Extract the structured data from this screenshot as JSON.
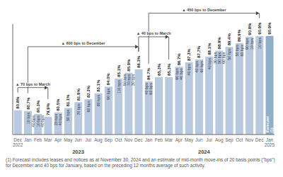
{
  "chart_data": {
    "type": "bar",
    "categories": [
      "Dec\n2022",
      "Jan",
      "Feb",
      "Mar",
      "Apr",
      "May",
      "Jun",
      "Jul",
      "Aug",
      "Sep",
      "Oct",
      "Nov",
      "Dec",
      "Jan",
      "Feb",
      "Mar",
      "Apr",
      "May",
      "Jun",
      "Jul",
      "Aug",
      "Sep",
      "Oct",
      "Nov",
      "Dec",
      "Jan\n2025"
    ],
    "values": [
      80.8,
      80.7,
      80.3,
      79.9,
      80.5,
      81.1,
      81.9,
      82.3,
      83.1,
      84.0,
      85.1,
      85.9,
      86.35,
      84.7,
      85.3,
      85.3,
      86.7,
      87.3,
      87.7,
      88.1,
      88.9,
      89.4,
      89.9,
      90.8,
      90.9,
      90.9
    ],
    "value_labels": [
      "80.8%",
      "80.7%",
      "80.3%",
      "79.9%",
      "80.5%",
      "81.1%",
      "81.9%",
      "82.3%",
      "83.1%",
      "84.0%",
      "85.1%",
      "85.9%",
      "86.3%",
      "84.7%",
      "85.3%",
      "85.3%",
      "86.7%",
      "87.3%",
      "87.7%",
      "88.1%",
      "88.9%",
      "89.4%",
      "89.9%",
      "90.8%",
      "90.9%",
      "90.9%"
    ],
    "data_labels": true,
    "colors": [
      "#b8c9e0",
      "#b8c9e0",
      "#b8c9e0",
      "#b8c9e0",
      "#b8c9e0",
      "#b8c9e0",
      "#b8c9e0",
      "#b8c9e0",
      "#b8c9e0",
      "#b8c9e0",
      "#b8c9e0",
      "#b8c9e0",
      "#b8c9e0",
      "#b8c9e0",
      "#b8c9e0",
      "#b8c9e0",
      "#b8c9e0",
      "#b8c9e0",
      "#b8c9e0",
      "#b8c9e0",
      "#b8c9e0",
      "#b8c9e0",
      "#b8c9e0",
      "#b8c9e0",
      "#b8c9e0",
      "#8faec8"
    ],
    "ylim": [
      77.5,
      92.5
    ],
    "tick_labels": "x",
    "grid": false,
    "annotations": [
      {
        "text": "10 bps",
        "x": 1
      },
      {
        "text": "40 bps\n10 bps\n40 bps",
        "x": 2
      },
      {
        "text": "20 bps\n40 bps",
        "x": 4
      },
      {
        "text": "50 bps",
        "x": 5
      },
      {
        "text": "70 bps",
        "x": 6
      },
      {
        "text": "60 bps",
        "x": 7
      },
      {
        "text": "80 bps",
        "x": 8
      },
      {
        "text": "90 bps",
        "x": 9
      },
      {
        "text": "110 bps",
        "x": 10
      },
      {
        "text": "50 bps\n70 bps\n30 bps",
        "x": 11
      },
      {
        "text": "40 bps\n60 bps",
        "x": 13
      },
      {
        "text": "60 bps\n40 bps",
        "x": 16
      },
      {
        "text": "40 bps",
        "x": 17
      },
      {
        "text": "40 bps\n60 bps",
        "x": 18
      },
      {
        "text": "40 bps",
        "x": 19
      },
      {
        "text": "30 bps\n50 bps\n60 bps",
        "x": 20
      },
      {
        "text": "50 bps",
        "x": 21
      },
      {
        "text": "50 bps\n60 bps",
        "x": 22
      },
      {
        "text": "90 bps\n10 bps",
        "x": 23
      },
      {
        "text": "10 bps",
        "x": 24
      }
    ],
    "forecast_label": {
      "text": "Forecast\n(1)",
      "x": 25
    },
    "brackets": [
      {
        "text": "▲ 70 bps to March",
        "from": 0,
        "to": 3
      },
      {
        "text": "▲ 600 bps to December",
        "from": 1,
        "to": 12
      },
      {
        "text": "▲ 40 bps to March",
        "from": 12,
        "to": 15
      },
      {
        "text": "▲ 450 bps to December",
        "from": 13,
        "to": 24
      }
    ],
    "group_labels": [
      {
        "text": "2023",
        "x": 6
      },
      {
        "text": "2024",
        "x": 18.5
      }
    ],
    "footnote": "(1) Forecast includes leases and notices as at November 30, 2024 and an estimate of mid-month move-ins of 20 basis points (\"bps\") for December and 40 bps for January, based on the preceding 12 months average of such activity."
  }
}
